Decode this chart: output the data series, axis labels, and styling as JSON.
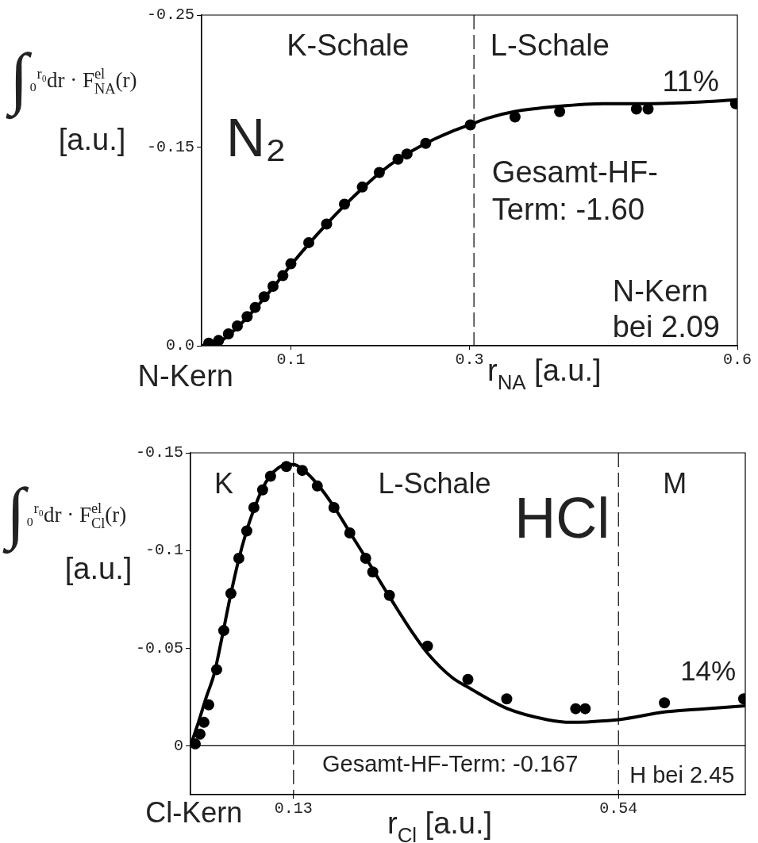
{
  "chart_data": [
    {
      "type": "line",
      "title": "N₂",
      "xlabel": "r$_{NA}$ [a.u.]",
      "ylabel": "∫₀$^{r₀}$dr · F$^{el}$$_{NA}$(r)\n[a.u.]",
      "xlim": [
        0,
        0.6
      ],
      "ylim": [
        0,
        -0.25
      ],
      "xticks": [
        0.1,
        0.3,
        0.6
      ],
      "yticks": [
        -0.25,
        -0.15,
        {
          "value": 0,
          "label": "0.0"
        }
      ],
      "ref_lines": [
        {
          "axis": "x",
          "value": 0.305,
          "line_style": "dashed"
        }
      ],
      "annotations": [
        "K-Schale",
        "L-Schale",
        "11%",
        "Gesamt-HF-\nTerm: -1.60",
        "N-Kern\nbei 2.09",
        "N-Kern"
      ],
      "series": [
        {
          "color": "#000000",
          "x": [
            0,
            0.02,
            0.04,
            0.06,
            0.08,
            0.1,
            0.12,
            0.14,
            0.16,
            0.18,
            0.2,
            0.22,
            0.24,
            0.26,
            0.28,
            0.3,
            0.32,
            0.35,
            0.4,
            0.45,
            0.5,
            0.55,
            0.6
          ],
          "values": [
            0,
            -0.003,
            -0.014,
            -0.028,
            -0.044,
            -0.061,
            -0.077,
            -0.092,
            -0.106,
            -0.119,
            -0.131,
            -0.141,
            -0.149,
            -0.156,
            -0.162,
            -0.167,
            -0.172,
            -0.177,
            -0.181,
            -0.183,
            -0.183,
            -0.184,
            -0.186
          ]
        },
        {
          "type": "scatter",
          "marker": "circle",
          "color": "#000000",
          "x": [
            0.008,
            0.019,
            0.03,
            0.04,
            0.051,
            0.06,
            0.07,
            0.08,
            0.091,
            0.1,
            0.12,
            0.14,
            0.16,
            0.18,
            0.199,
            0.22,
            0.23,
            0.251,
            0.301,
            0.351,
            0.401,
            0.487,
            0.5,
            0.598
          ],
          "values": [
            -0.002,
            -0.004,
            -0.009,
            -0.015,
            -0.022,
            -0.029,
            -0.037,
            -0.045,
            -0.053,
            -0.062,
            -0.078,
            -0.092,
            -0.107,
            -0.12,
            -0.131,
            -0.141,
            -0.145,
            -0.153,
            -0.167,
            -0.173,
            -0.177,
            -0.179,
            -0.179,
            -0.183
          ]
        }
      ]
    },
    {
      "type": "line",
      "title": "HCl",
      "xlabel": "r$_{Cl}$ [a.u.]",
      "ylabel": "∫₀$^{r₀}$dr · F$^{el}$$_{Cl}$(r)\n[a.u.]",
      "xlim": [
        0,
        0.7
      ],
      "ylim": [
        0.025,
        -0.15
      ],
      "xticks": [
        0.13,
        0.54
      ],
      "yticks": [
        -0.15,
        -0.1,
        -0.05,
        0
      ],
      "ref_lines": [
        {
          "axis": "x",
          "value": 0.13,
          "line_style": "dashed"
        },
        {
          "axis": "x",
          "value": 0.54,
          "line_style": "dashed"
        },
        {
          "axis": "y",
          "value": 0,
          "line_style": "solid"
        }
      ],
      "annotations": [
        "K",
        "L-Schale",
        "M",
        "14%",
        "Gesamt-HF-Term: -0.167",
        "H bei 2.45",
        "Cl-Kern"
      ],
      "series": [
        {
          "color": "#000000",
          "x": [
            0,
            0.01,
            0.02,
            0.03,
            0.04,
            0.05,
            0.06,
            0.07,
            0.08,
            0.09,
            0.1,
            0.11,
            0.12,
            0.13,
            0.14,
            0.16,
            0.18,
            0.2,
            0.22,
            0.25,
            0.28,
            0.3,
            0.33,
            0.35,
            0.4,
            0.45,
            0.48,
            0.5,
            0.54,
            0.6,
            0.65,
            0.7
          ],
          "values": [
            0,
            -0.012,
            -0.025,
            -0.037,
            -0.056,
            -0.076,
            -0.094,
            -0.109,
            -0.121,
            -0.131,
            -0.138,
            -0.142,
            -0.144,
            -0.144,
            -0.142,
            -0.134,
            -0.123,
            -0.11,
            -0.097,
            -0.077,
            -0.058,
            -0.047,
            -0.035,
            -0.03,
            -0.019,
            -0.0134,
            -0.012,
            -0.0122,
            -0.0134,
            -0.0174,
            -0.019,
            -0.0205
          ]
        },
        {
          "type": "scatter",
          "marker": "circle",
          "color": "#000000",
          "x": [
            0.006,
            0.012,
            0.017,
            0.023,
            0.033,
            0.042,
            0.051,
            0.061,
            0.071,
            0.08,
            0.091,
            0.101,
            0.121,
            0.141,
            0.16,
            0.181,
            0.201,
            0.221,
            0.23,
            0.251,
            0.299,
            0.35,
            0.399,
            0.486,
            0.498,
            0.598,
            0.698
          ],
          "values": [
            -0.001,
            -0.006,
            -0.012,
            -0.021,
            -0.039,
            -0.059,
            -0.078,
            -0.096,
            -0.11,
            -0.122,
            -0.131,
            -0.138,
            -0.143,
            -0.141,
            -0.133,
            -0.122,
            -0.109,
            -0.096,
            -0.089,
            -0.077,
            -0.051,
            -0.034,
            -0.024,
            -0.019,
            -0.019,
            -0.022,
            -0.024
          ]
        }
      ]
    }
  ]
}
